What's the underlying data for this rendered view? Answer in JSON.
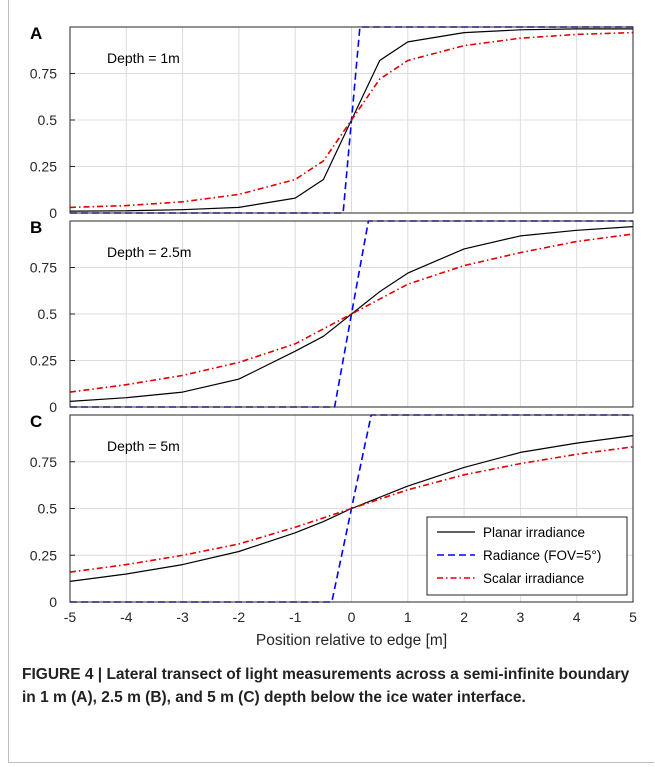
{
  "chart_data": {
    "type": "line",
    "xlabel": "Position relative to edge [m]",
    "xlim": [
      -5,
      5
    ],
    "ylim": [
      0,
      1
    ],
    "xticks": [
      -5,
      -4,
      -3,
      -2,
      -1,
      0,
      1,
      2,
      3,
      4,
      5
    ],
    "yticks": [
      0,
      0.25,
      0.5,
      0.75
    ],
    "ytick_labels": [
      "0",
      "0.25",
      "0.5",
      "0.75"
    ],
    "grid": true,
    "legend": {
      "placement": "bottom-right of panel C",
      "entries": [
        "Planar irradiance",
        "Radiance (FOV=5°)",
        "Scalar irradiance"
      ]
    },
    "series_styles": [
      {
        "name": "Planar irradiance",
        "color": "#000000",
        "dash": "solid"
      },
      {
        "name": "Radiance (FOV=5°)",
        "color": "#0000ff",
        "dash": "dashed"
      },
      {
        "name": "Scalar irradiance",
        "color": "#e00000",
        "dash": "dash-dot"
      }
    ],
    "panels": [
      {
        "letter": "A",
        "annotation": "Depth = 1m",
        "x": [
          -5,
          -4,
          -3,
          -2,
          -1,
          -0.5,
          0,
          0.5,
          1,
          2,
          3,
          4,
          5
        ],
        "series": [
          {
            "name": "Planar irradiance",
            "values": [
              0.01,
              0.012,
              0.018,
              0.03,
              0.08,
              0.18,
              0.5,
              0.82,
              0.92,
              0.97,
              0.985,
              0.99,
              0.99
            ]
          },
          {
            "name": "Radiance (FOV=5°)",
            "points": [
              [
                -5,
                0
              ],
              [
                -0.15,
                0
              ],
              [
                0.15,
                1
              ],
              [
                5,
                1
              ]
            ]
          },
          {
            "name": "Scalar irradiance",
            "values": [
              0.03,
              0.04,
              0.06,
              0.1,
              0.18,
              0.28,
              0.5,
              0.72,
              0.82,
              0.9,
              0.94,
              0.96,
              0.97
            ]
          }
        ]
      },
      {
        "letter": "B",
        "annotation": "Depth = 2.5m",
        "x": [
          -5,
          -4,
          -3,
          -2,
          -1,
          -0.5,
          0,
          0.5,
          1,
          2,
          3,
          4,
          5
        ],
        "series": [
          {
            "name": "Planar irradiance",
            "values": [
              0.03,
              0.05,
              0.08,
              0.15,
              0.3,
              0.38,
              0.5,
              0.62,
              0.72,
              0.85,
              0.92,
              0.95,
              0.97
            ]
          },
          {
            "name": "Radiance (FOV=5°)",
            "points": [
              [
                -5,
                0
              ],
              [
                -0.3,
                0
              ],
              [
                0.3,
                1
              ],
              [
                5,
                1
              ]
            ]
          },
          {
            "name": "Scalar irradiance",
            "values": [
              0.08,
              0.12,
              0.17,
              0.24,
              0.34,
              0.42,
              0.5,
              0.58,
              0.66,
              0.76,
              0.83,
              0.89,
              0.93
            ]
          }
        ]
      },
      {
        "letter": "C",
        "annotation": "Depth = 5m",
        "x": [
          -5,
          -4,
          -3,
          -2,
          -1,
          -0.5,
          0,
          0.5,
          1,
          2,
          3,
          4,
          5
        ],
        "series": [
          {
            "name": "Planar irradiance",
            "values": [
              0.11,
              0.15,
              0.2,
              0.27,
              0.37,
              0.43,
              0.5,
              0.56,
              0.62,
              0.72,
              0.8,
              0.85,
              0.89
            ]
          },
          {
            "name": "Radiance (FOV=5°)",
            "points": [
              [
                -5,
                0
              ],
              [
                -0.35,
                0
              ],
              [
                0.35,
                1
              ],
              [
                5,
                1
              ]
            ]
          },
          {
            "name": "Scalar irradiance",
            "values": [
              0.16,
              0.2,
              0.25,
              0.31,
              0.4,
              0.45,
              0.5,
              0.55,
              0.6,
              0.68,
              0.74,
              0.79,
              0.83
            ]
          }
        ]
      }
    ]
  },
  "caption": {
    "label": "FIGURE 4 |",
    "text": "Lateral transect of light measurements across a semi-infinite boundary in 1 m (A), 2.5 m (B), and 5 m (C) depth below the ice water interface."
  }
}
